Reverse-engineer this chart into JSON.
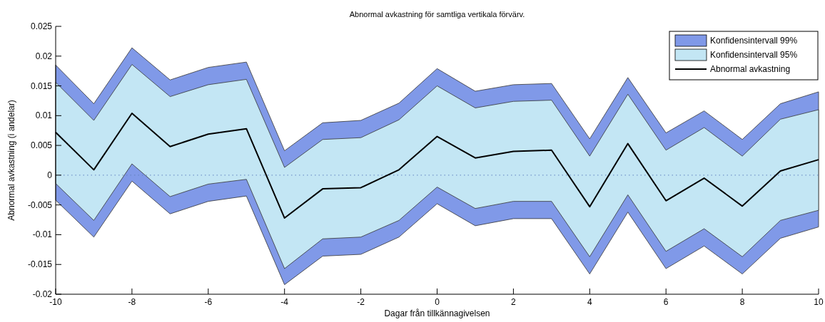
{
  "chart_data": {
    "type": "line",
    "title": "Abnormal avkastning för samtliga vertikala förvärv.",
    "xlabel": "Dagar från tillkännagivelsen",
    "ylabel": "Abnormal avkastning (i andelar)",
    "x": [
      -10,
      -9,
      -8,
      -7,
      -6,
      -5,
      -4,
      -3,
      -2,
      -1,
      0,
      1,
      2,
      3,
      4,
      5,
      6,
      7,
      8,
      9,
      10
    ],
    "series": [
      {
        "name": "Konfidensintervall 99%",
        "color": "#8099e8",
        "values": [
          null,
          null,
          null,
          null,
          null,
          null,
          null,
          null,
          null,
          null,
          null,
          null,
          null,
          null,
          null,
          null,
          null,
          null,
          null,
          null,
          null
        ],
        "lower": [
          -0.0042,
          -0.0104,
          -0.001,
          -0.0065,
          -0.0044,
          -0.0035,
          -0.0184,
          -0.0136,
          -0.0133,
          -0.0104,
          -0.0048,
          -0.0085,
          -0.0073,
          -0.0073,
          -0.0166,
          -0.0062,
          -0.0157,
          -0.0119,
          -0.0166,
          -0.0106,
          -0.0087
        ],
        "upper": [
          0.0185,
          0.012,
          0.0214,
          0.016,
          0.0181,
          0.019,
          0.0041,
          0.0088,
          0.0092,
          0.0121,
          0.0179,
          0.0141,
          0.0152,
          0.0154,
          0.0061,
          0.0164,
          0.0071,
          0.0108,
          0.006,
          0.012,
          0.014
        ]
      },
      {
        "name": "Konfidensintervall 95%",
        "color": "#c3e6f4",
        "values": [
          null,
          null,
          null,
          null,
          null,
          null,
          null,
          null,
          null,
          null,
          null,
          null,
          null,
          null,
          null,
          null,
          null,
          null,
          null,
          null,
          null
        ],
        "lower": [
          -0.0014,
          -0.0076,
          0.0019,
          -0.0036,
          -0.0015,
          -0.0007,
          -0.0157,
          -0.0107,
          -0.0104,
          -0.0076,
          -0.002,
          -0.0056,
          -0.0044,
          -0.0044,
          -0.0137,
          -0.0033,
          -0.0128,
          -0.009,
          -0.0137,
          -0.0076,
          -0.0059
        ],
        "upper": [
          0.0156,
          0.0092,
          0.0186,
          0.0132,
          0.0152,
          0.0161,
          0.0013,
          0.006,
          0.0063,
          0.0093,
          0.015,
          0.0113,
          0.0124,
          0.0126,
          0.0032,
          0.0136,
          0.0042,
          0.008,
          0.0032,
          0.0094,
          0.011
        ]
      },
      {
        "name": "Abnormal avkastning",
        "color": "#000000",
        "values": [
          0.0072,
          0.0009,
          0.0104,
          0.0048,
          0.0069,
          0.0078,
          -0.0072,
          -0.0023,
          -0.0021,
          0.0009,
          0.0065,
          0.0029,
          0.004,
          0.0042,
          -0.0053,
          0.0053,
          -0.0043,
          -0.0005,
          -0.0052,
          0.0007,
          0.0026
        ]
      }
    ],
    "xlim": [
      -10,
      10
    ],
    "xticks": [
      -10,
      -8,
      -6,
      -4,
      -2,
      0,
      2,
      4,
      6,
      8,
      10
    ],
    "ylim": [
      -0.02,
      0.025
    ],
    "yticks": [
      -0.02,
      -0.015,
      -0.01,
      -0.005,
      0,
      0.005,
      0.01,
      0.015,
      0.02,
      0.025
    ],
    "ref_lines": [
      {
        "axis": "y",
        "value": 0,
        "color": "#6080c0",
        "line_style": "dotted"
      }
    ],
    "legend": "top right",
    "grid": false,
    "marker": "none",
    "line_style": "solid"
  }
}
